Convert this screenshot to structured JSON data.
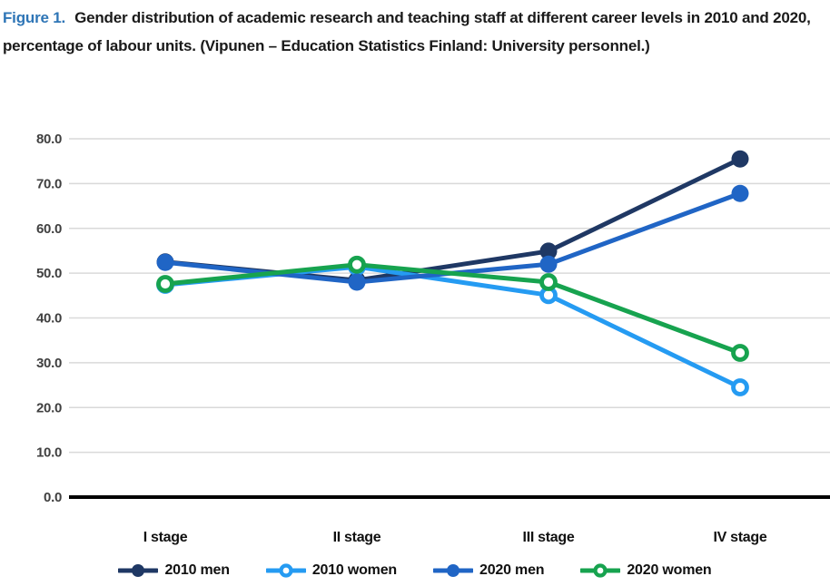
{
  "title": {
    "figure_label": "Figure 1.",
    "text": "Gender distribution of academic research and teaching staff at different career levels in 2010 and 2020, percentage of labour units. (Vipunen – Education Statistics Finland: University personnel.)"
  },
  "chart_data": {
    "type": "line",
    "categories": [
      "I stage",
      "II stage",
      "III stage",
      "IV stage"
    ],
    "series": [
      {
        "name": "2010 men",
        "color": "#1F3864",
        "marker": "filled",
        "values": [
          52.5,
          48.4,
          54.9,
          75.5
        ]
      },
      {
        "name": "2010 women",
        "color": "#259BF2",
        "marker": "open",
        "values": [
          47.4,
          51.4,
          45.1,
          24.5
        ]
      },
      {
        "name": "2020 men",
        "color": "#2065C5",
        "marker": "filled",
        "values": [
          52.4,
          48.0,
          52.0,
          67.8
        ]
      },
      {
        "name": "2020 women",
        "color": "#17A34F",
        "marker": "open",
        "values": [
          47.6,
          51.9,
          48.0,
          32.2
        ]
      }
    ],
    "ylim": [
      0,
      80
    ],
    "ytick_step": 10,
    "ytick_labels": [
      "0.0",
      "10.0",
      "20.0",
      "30.0",
      "40.0",
      "50.0",
      "60.0",
      "70.0",
      "80.0"
    ],
    "grid": true,
    "legend_position": "bottom"
  },
  "colors": {
    "figure_label": "#2E75B6",
    "gridline": "#D9D9D9",
    "axis_line": "#000000",
    "ytick_text": "#404040",
    "xtick_text": "#111111"
  }
}
